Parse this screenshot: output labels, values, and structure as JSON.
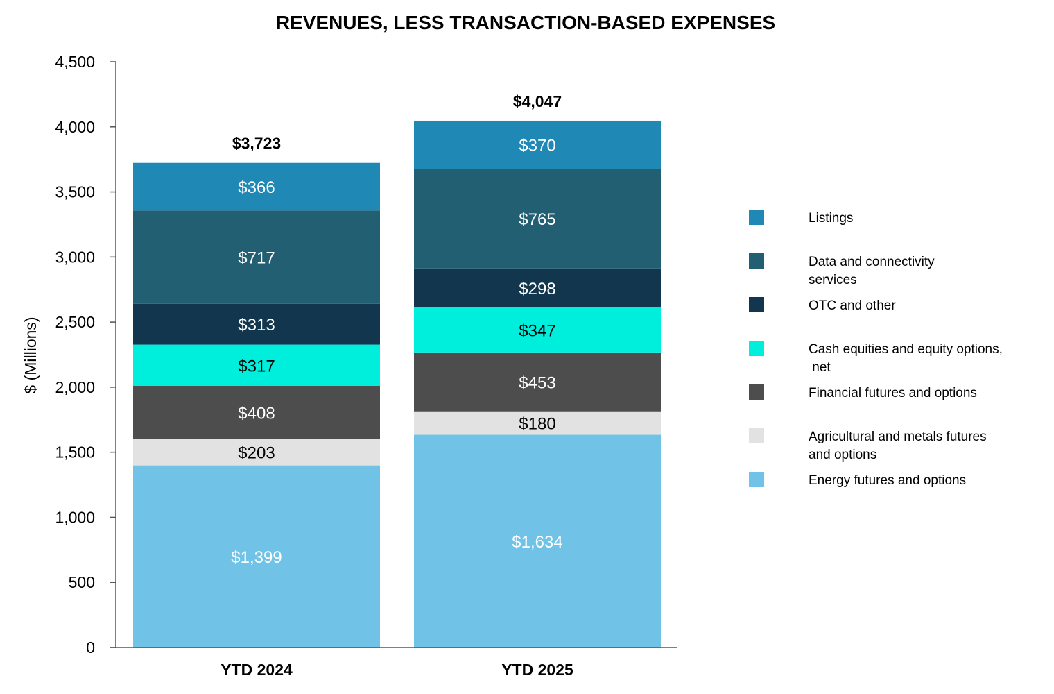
{
  "chart_data": {
    "type": "bar",
    "stacked": true,
    "title": "REVENUES, LESS TRANSACTION-BASED EXPENSES",
    "ylabel": "$ (Millions)",
    "xlabel": "",
    "ylim": [
      0,
      4500
    ],
    "yticks": [
      0,
      500,
      1000,
      1500,
      2000,
      2500,
      3000,
      3500,
      4000,
      4500
    ],
    "ytick_labels": [
      "0",
      "500",
      "1,000",
      "1,500",
      "2,000",
      "2,500",
      "3,000",
      "3,500",
      "4,000",
      "4,500"
    ],
    "categories": [
      "YTD 2024",
      "YTD 2025"
    ],
    "totals": [
      3723,
      4047
    ],
    "total_labels": [
      "$3,723",
      "$4,047"
    ],
    "legend_position": "right",
    "grid": false,
    "series": [
      {
        "name": "Energy futures and options",
        "legend_lines": [
          "Energy futures and options"
        ],
        "color": "#70c3e7",
        "label_color": "#ffffff",
        "values": [
          1399,
          1634
        ],
        "labels": [
          "$1,399",
          "$1,634"
        ]
      },
      {
        "name": "Agricultural and metals futures and options",
        "legend_lines": [
          "Agricultural and metals futures",
          "and options"
        ],
        "color": "#e2e2e2",
        "label_color": "#000000",
        "values": [
          203,
          180
        ],
        "labels": [
          "$203",
          "$180"
        ]
      },
      {
        "name": "Financial futures and options",
        "legend_lines": [
          "Financial futures and options"
        ],
        "color": "#4d4d4d",
        "label_color": "#ffffff",
        "values": [
          408,
          453
        ],
        "labels": [
          "$408",
          "$453"
        ]
      },
      {
        "name": "Cash equities and equity options, net",
        "legend_lines": [
          "Cash equities and equity options,",
          " net"
        ],
        "color": "#00efdc",
        "label_color": "#000000",
        "values": [
          317,
          347
        ],
        "labels": [
          "$317",
          "$347"
        ]
      },
      {
        "name": "OTC and other",
        "legend_lines": [
          "OTC and other"
        ],
        "color": "#12364d",
        "label_color": "#ffffff",
        "values": [
          313,
          298
        ],
        "labels": [
          "$313",
          "$298"
        ]
      },
      {
        "name": "Data and connectivity services",
        "legend_lines": [
          "Data and connectivity",
          "services"
        ],
        "color": "#235f73",
        "label_color": "#ffffff",
        "values": [
          717,
          765
        ],
        "labels": [
          "$717",
          "$765"
        ]
      },
      {
        "name": "Listings",
        "legend_lines": [
          "Listings"
        ],
        "color": "#1f88b5",
        "label_color": "#ffffff",
        "values": [
          366,
          370
        ],
        "labels": [
          "$366",
          "$370"
        ]
      }
    ]
  }
}
